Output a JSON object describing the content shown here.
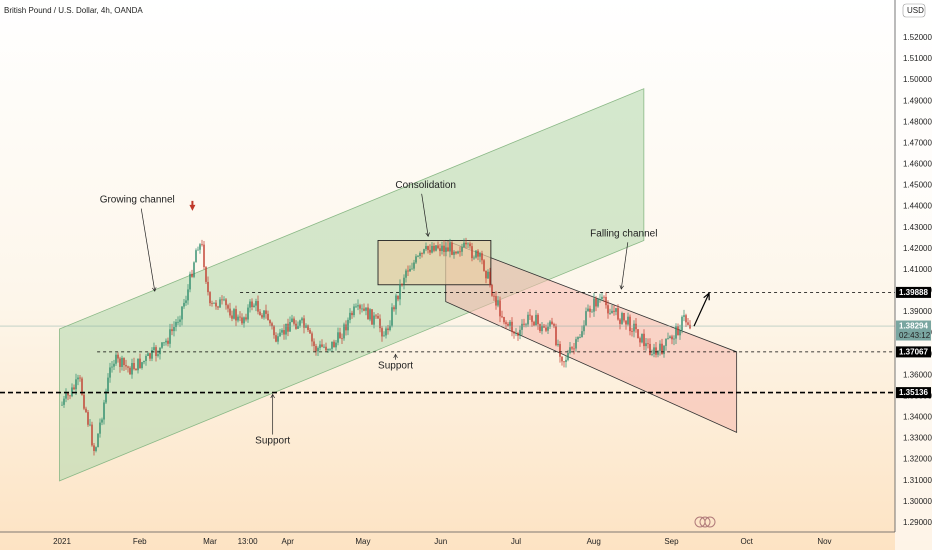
{
  "chart_data": {
    "type": "candlestick",
    "title": "British Pound / U.S. Dollar, 4h, OANDA",
    "currency": "USD",
    "y_axis": {
      "ticks": [
        "1.52000",
        "1.51000",
        "1.50000",
        "1.49000",
        "1.48000",
        "1.47000",
        "1.46000",
        "1.45000",
        "1.44000",
        "1.43000",
        "1.42000",
        "1.41000",
        "1.40000",
        "1.39000",
        "1.38000",
        "1.37000",
        "1.36000",
        "1.35000",
        "1.34000",
        "1.33000",
        "1.32000",
        "1.31000",
        "1.30000",
        "1.29000"
      ],
      "range": [
        1.2863,
        1.5324
      ]
    },
    "x_axis": {
      "ticks": [
        "2021",
        "Feb",
        "Mar",
        "13:00",
        "Apr",
        "May",
        "Jun",
        "Jul",
        "Aug",
        "Sep",
        "Oct",
        "Nov"
      ]
    },
    "price_tags": [
      {
        "price": 1.39888,
        "label": "1.39888",
        "style": "dashed",
        "color": "#000000"
      },
      {
        "price": 1.38294,
        "label": "1.38294",
        "sublabel": "02:43:12",
        "style": "current",
        "color": "#7aa6a1"
      },
      {
        "price": 1.37067,
        "label": "1.37067",
        "style": "dashed",
        "color": "#000000"
      },
      {
        "price": 1.35136,
        "label": "1.35136",
        "style": "bold-dashed",
        "color": "#000000"
      }
    ],
    "series_path": [
      [
        "2021-01-01",
        1.3455
      ],
      [
        "2021-01-08",
        1.357
      ],
      [
        "2021-01-14",
        1.323
      ],
      [
        "2021-01-21",
        1.3672
      ],
      [
        "2021-01-28",
        1.3625
      ],
      [
        "2021-02-03",
        1.3665
      ],
      [
        "2021-02-10",
        1.3725
      ],
      [
        "2021-02-15",
        1.3829
      ],
      [
        "2021-02-20",
        1.3985
      ],
      [
        "2021-02-24",
        1.4225
      ],
      [
        "2021-02-26",
        1.4195
      ],
      [
        "2021-03-01",
        1.391
      ],
      [
        "2021-03-04",
        1.3945
      ],
      [
        "2021-03-09",
        1.3905
      ],
      [
        "2021-03-13",
        1.3847
      ],
      [
        "2021-03-18",
        1.394
      ],
      [
        "2021-03-24",
        1.3869
      ],
      [
        "2021-03-28",
        1.3745
      ],
      [
        "2021-04-02",
        1.3855
      ],
      [
        "2021-04-07",
        1.3835
      ],
      [
        "2021-04-12",
        1.372
      ],
      [
        "2021-04-20",
        1.3745
      ],
      [
        "2021-04-27",
        1.3895
      ],
      [
        "2021-05-02",
        1.3895
      ],
      [
        "2021-05-06",
        1.3855
      ],
      [
        "2021-05-10",
        1.3785
      ],
      [
        "2021-05-13",
        1.3915
      ],
      [
        "2021-05-18",
        1.4095
      ],
      [
        "2021-05-23",
        1.4145
      ],
      [
        "2021-05-29",
        1.4215
      ],
      [
        "2021-06-03",
        1.4195
      ],
      [
        "2021-06-09",
        1.4205
      ],
      [
        "2021-06-14",
        1.4175
      ],
      [
        "2021-06-18",
        1.4125
      ],
      [
        "2021-06-23",
        1.3945
      ],
      [
        "2021-06-27",
        1.3845
      ],
      [
        "2021-07-02",
        1.3785
      ],
      [
        "2021-07-07",
        1.3885
      ],
      [
        "2021-07-11",
        1.3815
      ],
      [
        "2021-07-15",
        1.3835
      ],
      [
        "2021-07-20",
        1.3668
      ],
      [
        "2021-07-25",
        1.3735
      ],
      [
        "2021-07-30",
        1.3905
      ],
      [
        "2021-08-03",
        1.3958
      ],
      [
        "2021-08-07",
        1.3915
      ],
      [
        "2021-08-12",
        1.3865
      ],
      [
        "2021-08-17",
        1.3825
      ],
      [
        "2021-08-22",
        1.3735
      ],
      [
        "2021-08-26",
        1.3695
      ],
      [
        "2021-08-30",
        1.3745
      ],
      [
        "2021-09-03",
        1.3805
      ],
      [
        "2021-09-06",
        1.3865
      ],
      [
        "2021-09-09",
        1.3829
      ]
    ],
    "projection": {
      "from": [
        "2021-09-10",
        1.3829
      ],
      "to": [
        "2021-09-16",
        1.3985
      ]
    },
    "shapes": {
      "growing_channel": {
        "color": "#b8dbb0",
        "points": [
          [
            "2020-12-31",
            1.3815
          ],
          [
            "2021-08-21",
            1.4955
          ],
          [
            "2021-08-21",
            1.4235
          ],
          [
            "2020-12-31",
            1.3095
          ]
        ]
      },
      "falling_channel": {
        "color": "#f5b8ad",
        "points": [
          [
            "2021-06-03",
            1.4235
          ],
          [
            "2021-09-27",
            1.3707
          ],
          [
            "2021-09-27",
            1.3325
          ],
          [
            "2021-06-03",
            1.3945
          ]
        ]
      },
      "consolidation_box": {
        "color": "#e8cfa5",
        "from": [
          "2021-05-07",
          1.4235
        ],
        "to": [
          "2021-06-21",
          1.4025
        ]
      }
    },
    "annotations": [
      {
        "text": "Growing channel",
        "at": [
          "2021-01-31",
          1.4415
        ]
      },
      {
        "text": "Consolidation",
        "at": [
          "2021-05-26",
          1.4485
        ]
      },
      {
        "text": "Falling channel",
        "at": [
          "2021-08-13",
          1.4255
        ]
      },
      {
        "text": "Support",
        "at": [
          "2021-05-14",
          1.3627
        ]
      },
      {
        "text": "Support",
        "at": [
          "2021-03-26",
          1.3272
        ]
      }
    ],
    "signal_arrow_at": [
      "2021-02-22",
      1.4385
    ],
    "grid": false,
    "legend": "none"
  }
}
